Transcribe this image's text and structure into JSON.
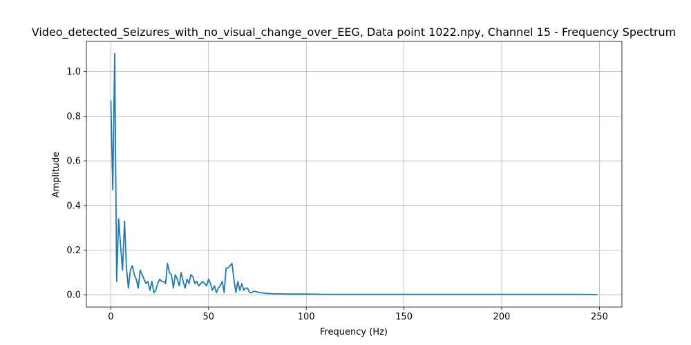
{
  "chart_data": {
    "type": "line",
    "title": "Video_detected_Seizures_with_no_visual_change_over_EEG, Data point 1022.npy, Channel 15 - Frequency Spectrum",
    "xlabel": "Frequency (Hz)",
    "ylabel": "Amplitude",
    "xlim": [
      -12.5,
      261.5
    ],
    "ylim": [
      -0.055,
      1.135
    ],
    "xticks": [
      0,
      50,
      100,
      150,
      200,
      250
    ],
    "yticks": [
      0.0,
      0.2,
      0.4,
      0.6,
      0.8,
      1.0
    ],
    "xtick_labels": [
      "0",
      "50",
      "100",
      "150",
      "200",
      "250"
    ],
    "ytick_labels": [
      "0.0",
      "0.2",
      "0.4",
      "0.6",
      "0.8",
      "1.0"
    ],
    "grid": true,
    "color": "#1f77b4",
    "series": [
      {
        "x": [
          0,
          1,
          2,
          3,
          4,
          5,
          6,
          7,
          8,
          9,
          10,
          11,
          12,
          13,
          14,
          15,
          16,
          17,
          18,
          19,
          20,
          21,
          22,
          23,
          24,
          25,
          26,
          27,
          28,
          29,
          30,
          31,
          32,
          33,
          34,
          35,
          36,
          37,
          38,
          39,
          40,
          41,
          42,
          43,
          44,
          45,
          46,
          47,
          48,
          49,
          50,
          51,
          52,
          53,
          54,
          55,
          56,
          57,
          58,
          59,
          60,
          61,
          62,
          63,
          64,
          65,
          66,
          67,
          68,
          69,
          70,
          71,
          72,
          73,
          74,
          75,
          76,
          78,
          80,
          82,
          84,
          86,
          88,
          90,
          95,
          100,
          110,
          120,
          130,
          140,
          150,
          160,
          170,
          180,
          190,
          200,
          210,
          220,
          230,
          240,
          249
        ],
        "y": [
          0.87,
          0.47,
          1.08,
          0.06,
          0.34,
          0.22,
          0.11,
          0.33,
          0.12,
          0.03,
          0.11,
          0.13,
          0.09,
          0.07,
          0.03,
          0.11,
          0.09,
          0.07,
          0.05,
          0.06,
          0.02,
          0.06,
          0.01,
          0.02,
          0.05,
          0.07,
          0.06,
          0.06,
          0.05,
          0.14,
          0.1,
          0.09,
          0.03,
          0.09,
          0.07,
          0.04,
          0.1,
          0.06,
          0.03,
          0.07,
          0.05,
          0.09,
          0.08,
          0.05,
          0.06,
          0.04,
          0.05,
          0.06,
          0.05,
          0.04,
          0.07,
          0.05,
          0.02,
          0.04,
          0.01,
          0.03,
          0.04,
          0.06,
          0.01,
          0.12,
          0.12,
          0.13,
          0.14,
          0.07,
          0.01,
          0.06,
          0.02,
          0.05,
          0.02,
          0.03,
          0.03,
          0.01,
          0.01,
          0.015,
          0.015,
          0.012,
          0.01,
          0.008,
          0.006,
          0.005,
          0.004,
          0.004,
          0.004,
          0.003,
          0.003,
          0.003,
          0.002,
          0.002,
          0.002,
          0.002,
          0.002,
          0.002,
          0.002,
          0.002,
          0.002,
          0.002,
          0.002,
          0.002,
          0.002,
          0.002,
          0.001
        ]
      }
    ]
  }
}
